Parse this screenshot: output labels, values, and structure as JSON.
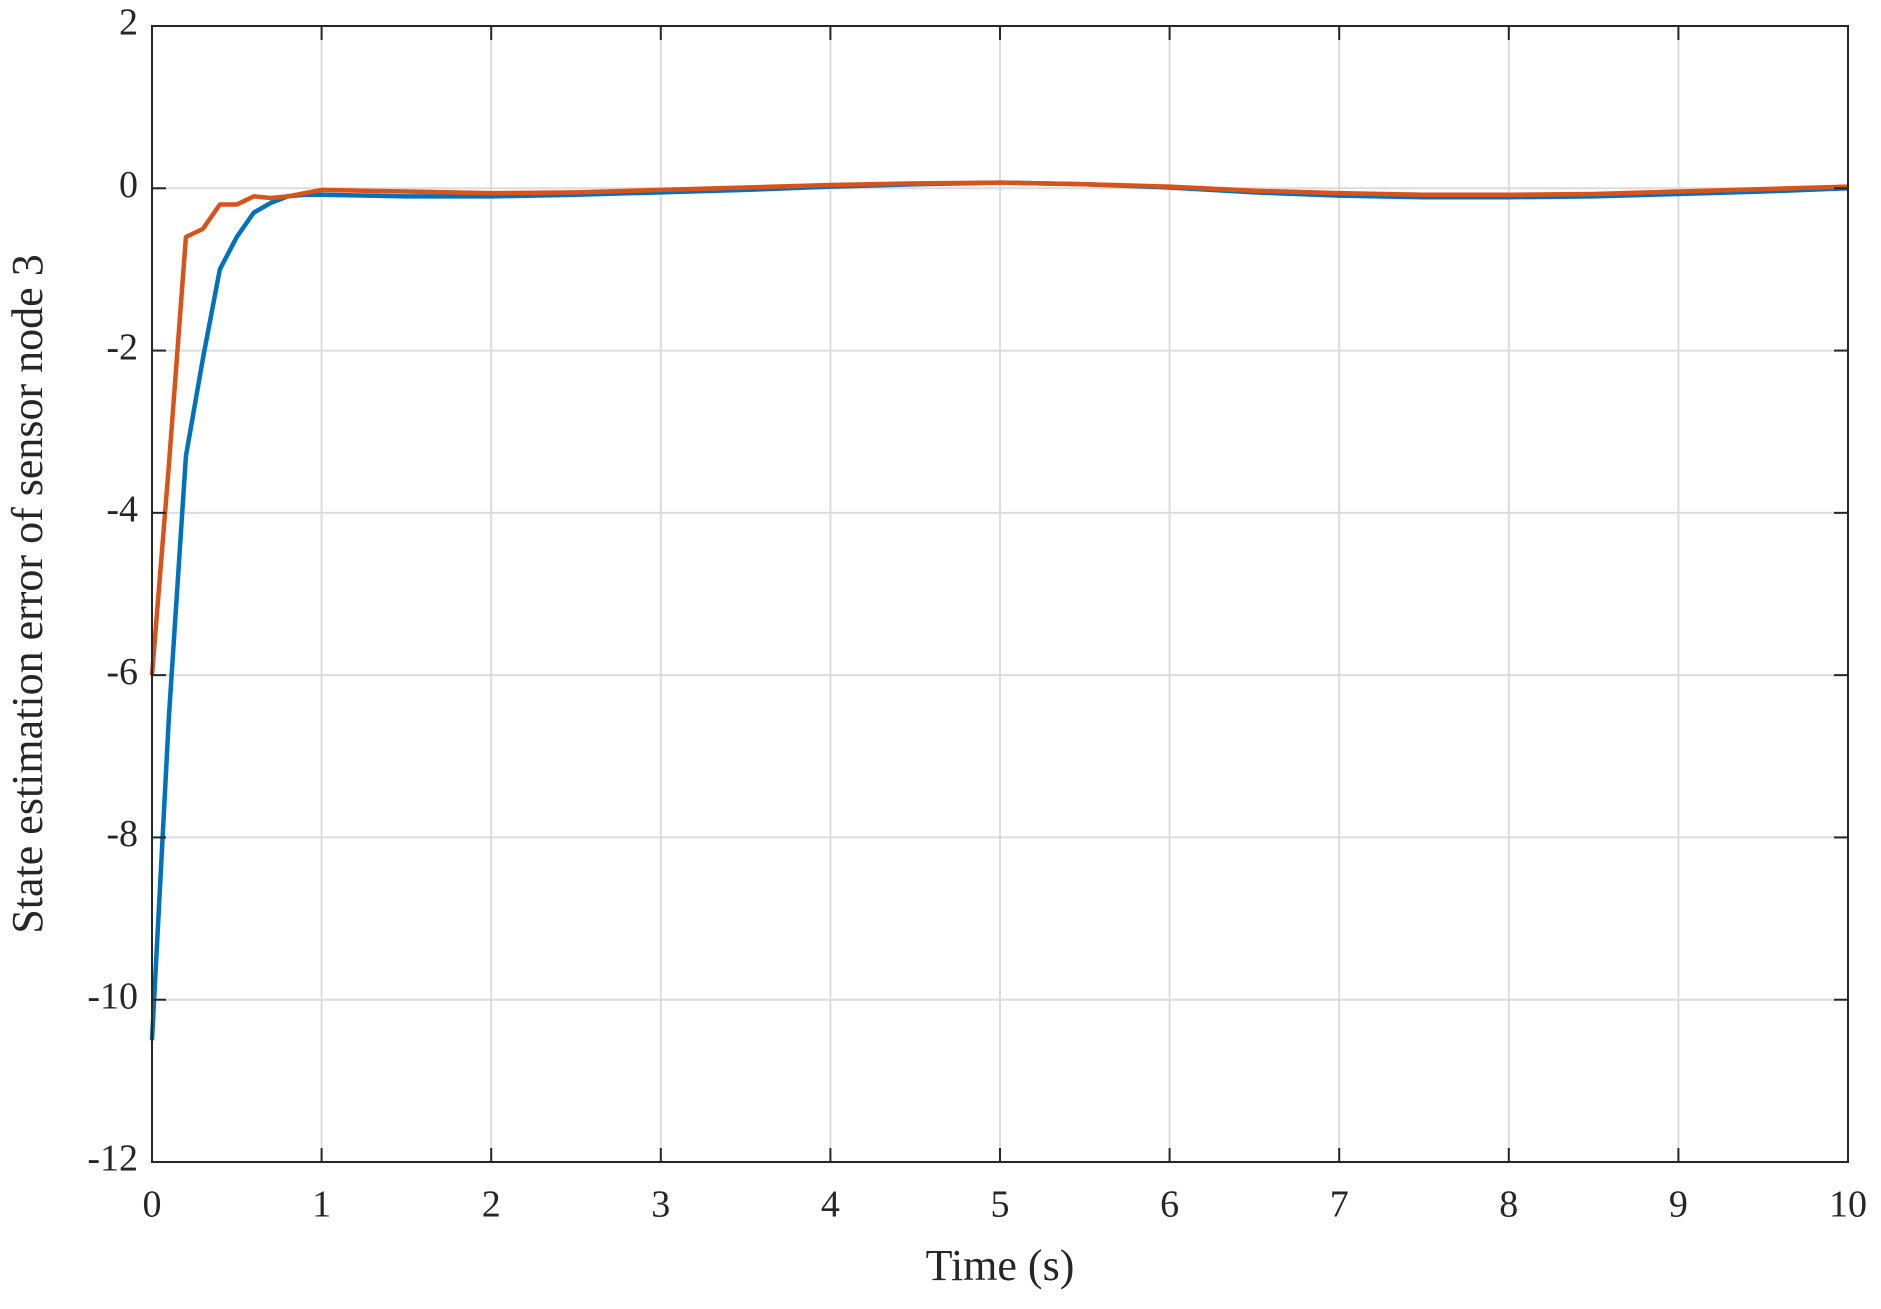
{
  "chart_data": {
    "type": "line",
    "xlabel": "Time (s)",
    "ylabel": "State estimation error of sensor node 3",
    "x": [
      0,
      0.1,
      0.2,
      0.3,
      0.4,
      0.5,
      0.6,
      0.7,
      0.8,
      0.9,
      1,
      1.5,
      2,
      2.5,
      3,
      3.5,
      4,
      4.5,
      5,
      5.5,
      6,
      6.5,
      7,
      7.5,
      8,
      8.5,
      9,
      9.5,
      10
    ],
    "series": [
      {
        "color": "#0072bd",
        "values": [
          -10.5,
          -6.5,
          -3.3,
          -2.1,
          -1.0,
          -0.6,
          -0.3,
          -0.18,
          -0.1,
          -0.08,
          -0.08,
          -0.1,
          -0.1,
          -0.08,
          -0.05,
          -0.02,
          0.02,
          0.05,
          0.07,
          0.05,
          0.01,
          -0.05,
          -0.09,
          -0.11,
          -0.11,
          -0.1,
          -0.07,
          -0.04,
          0
        ]
      },
      {
        "color": "#d95319",
        "values": [
          -6,
          -3.4,
          -0.6,
          -0.5,
          -0.2,
          -0.2,
          -0.1,
          -0.12,
          -0.1,
          -0.06,
          -0.02,
          -0.04,
          -0.06,
          -0.05,
          -0.02,
          0.01,
          0.04,
          0.06,
          0.07,
          0.05,
          0.02,
          -0.03,
          -0.06,
          -0.08,
          -0.08,
          -0.07,
          -0.04,
          -0.01,
          0.02
        ]
      }
    ],
    "xlim": [
      0,
      10
    ],
    "xticks": [
      0,
      1,
      2,
      3,
      4,
      5,
      6,
      7,
      8,
      9,
      10
    ],
    "ylim": [
      -12,
      2
    ],
    "yticks": [
      -12,
      -10,
      -8,
      -6,
      -4,
      -2,
      0,
      2
    ],
    "grid": true
  }
}
